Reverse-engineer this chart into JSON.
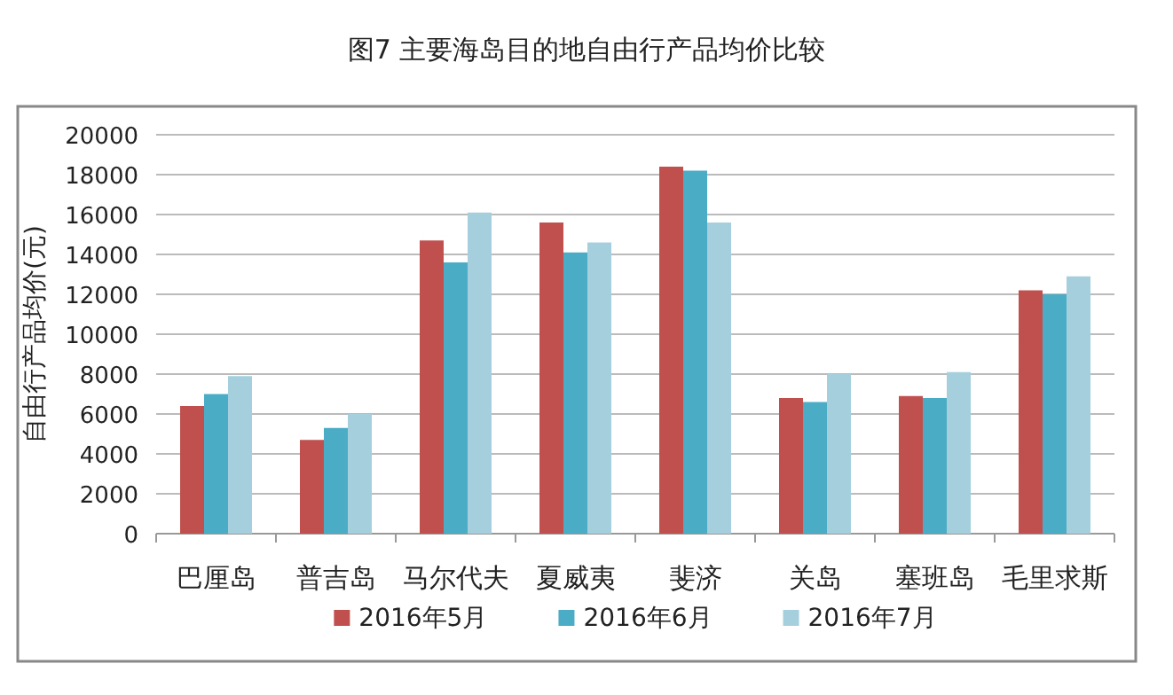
{
  "chart_data": {
    "type": "bar",
    "title": "图7 主要海岛目的地自由行产品均价比较",
    "ylabel": "自由行产品均价(元)",
    "categories": [
      "巴厘岛",
      "普吉岛",
      "马尔代夫",
      "夏威夷",
      "斐济",
      "关岛",
      "塞班岛",
      "毛里求斯"
    ],
    "series": [
      {
        "name": "2016年5月",
        "color": "#c0504d",
        "values": [
          6400,
          4700,
          14700,
          15600,
          18400,
          6800,
          6900,
          12200
        ]
      },
      {
        "name": "2016年6月",
        "color": "#4bacc6",
        "values": [
          7000,
          5300,
          13600,
          14100,
          18200,
          6600,
          6800,
          12000
        ]
      },
      {
        "name": "2016年7月",
        "color": "#a5cfdd",
        "values": [
          7900,
          6000,
          16100,
          14600,
          15600,
          8000,
          8100,
          12900
        ]
      }
    ],
    "ylim": [
      0,
      20000
    ],
    "yticks": [
      0,
      2000,
      4000,
      6000,
      8000,
      10000,
      12000,
      14000,
      16000,
      18000,
      20000
    ],
    "grid": "y",
    "legend": "bottom"
  }
}
